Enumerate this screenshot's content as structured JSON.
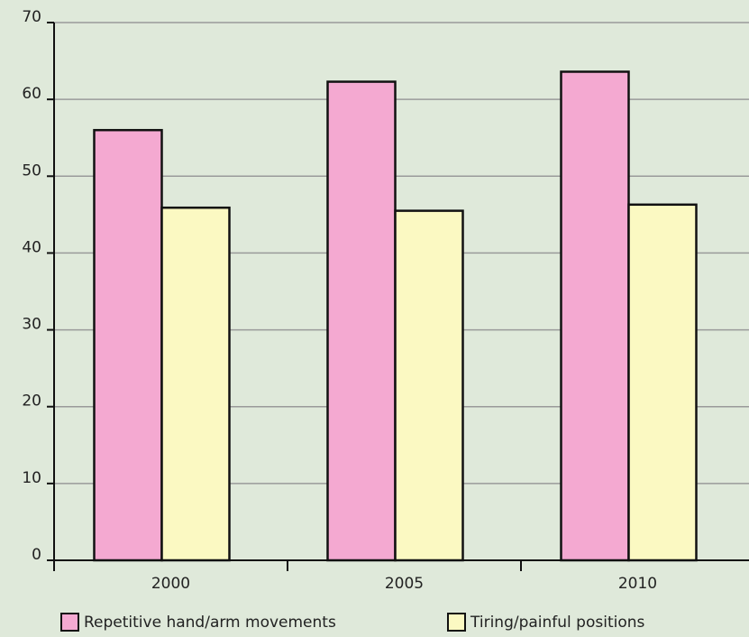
{
  "chart_data": {
    "type": "bar",
    "categories": [
      "2000",
      "2005",
      "2010"
    ],
    "series": [
      {
        "name": "Repetitive hand/arm movements",
        "color": "#f4a9d1",
        "values": [
          56.0,
          62.3,
          63.6
        ]
      },
      {
        "name": "Tiring/painful positions",
        "color": "#fbf9c2",
        "values": [
          45.9,
          45.5,
          46.3
        ]
      }
    ],
    "ylim": [
      0,
      70
    ],
    "yticks": [
      0,
      10,
      20,
      30,
      40,
      50,
      60,
      70
    ],
    "grid": true,
    "legend": "bottom"
  }
}
